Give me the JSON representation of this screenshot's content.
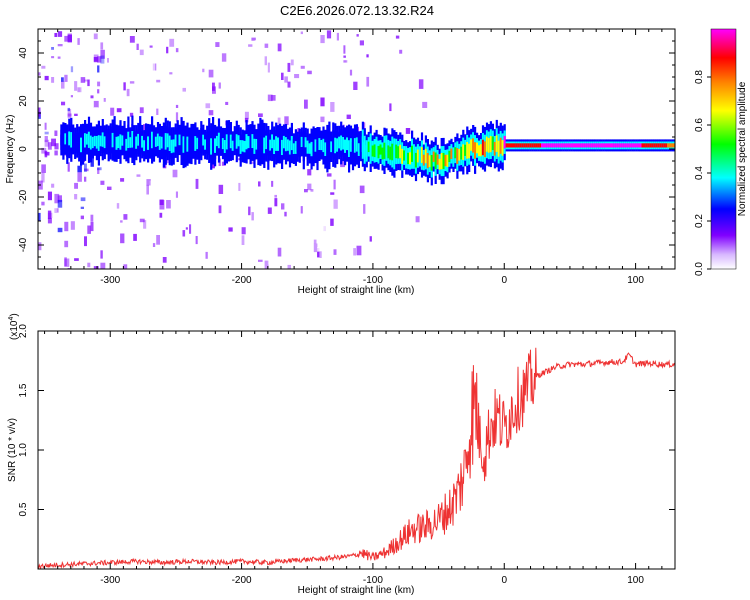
{
  "figure_title": "C2E6.2026.072.13.32.R24",
  "chart_data": [
    {
      "type": "heatmap",
      "xlabel": "Height of straight line (km)",
      "ylabel": "Frequency (Hz)",
      "xlim": [
        -355,
        130
      ],
      "ylim": [
        -50,
        50
      ],
      "xticks": [
        -300,
        -200,
        -100,
        0,
        100
      ],
      "xtick_labels": [
        "-300",
        "-200",
        "-100",
        "0",
        "100"
      ],
      "yticks": [
        -40,
        -20,
        0,
        20,
        40
      ],
      "ytick_labels": [
        "-40",
        "-20",
        "0",
        "20",
        "40"
      ],
      "colorbar": {
        "label": "Normalized spectral amplitude",
        "range": [
          0,
          1
        ],
        "ticks": [
          0.0,
          0.2,
          0.4,
          0.6,
          0.8
        ],
        "tick_labels": [
          "0.0",
          "0.2",
          "0.4",
          "0.6",
          "0.8"
        ],
        "colormap": [
          "#ffffff",
          "#8000ff",
          "#0000ff",
          "#00ffff",
          "#00ff00",
          "#ffff00",
          "#ff8000",
          "#ff0000",
          "#ff00ff"
        ]
      },
      "ridge": {
        "description_points_x": [
          -335,
          -250,
          -150,
          -110,
          -90,
          -75,
          -60,
          -50,
          -40,
          -30,
          0,
          50,
          100,
          130
        ],
        "frequency_hz": [
          3,
          2.5,
          1.5,
          1,
          -1,
          -3,
          -4,
          -5,
          -3,
          0,
          1.5,
          1.5,
          1.5,
          1.5
        ],
        "peak_amplitude": [
          0.3,
          0.3,
          0.3,
          0.35,
          0.45,
          0.5,
          0.6,
          0.7,
          0.6,
          0.6,
          0.8,
          0.95,
          0.9,
          0.75
        ]
      },
      "grid": false
    },
    {
      "type": "line",
      "xlabel": "Height of straight line (km)",
      "ylabel": "SNR (10 * v/v)",
      "yscale_label": "(x10",
      "yscale_exp": "4",
      "yscale_close": ")",
      "xlim": [
        -355,
        130
      ],
      "ylim": [
        0,
        2.0
      ],
      "xticks": [
        -300,
        -200,
        -100,
        0,
        100
      ],
      "xtick_labels": [
        "-300",
        "-200",
        "-100",
        "0",
        "100"
      ],
      "yticks": [
        0.5,
        1.0,
        1.5,
        2.0
      ],
      "ytick_labels": [
        "0.5",
        "1.0",
        "1.5",
        "2.0"
      ],
      "series": [
        {
          "color": "#ee3333",
          "x": [
            -355,
            -340,
            -320,
            -300,
            -280,
            -260,
            -240,
            -220,
            -200,
            -180,
            -160,
            -140,
            -120,
            -110,
            -100,
            -90,
            -80,
            -70,
            -60,
            -50,
            -45,
            -40,
            -35,
            -30,
            -25,
            -20,
            -15,
            -10,
            -5,
            0,
            5,
            10,
            15,
            20,
            30,
            40,
            50,
            60,
            70,
            80,
            90,
            95,
            100,
            110,
            120,
            130
          ],
          "y": [
            0.02,
            0.03,
            0.04,
            0.05,
            0.06,
            0.05,
            0.06,
            0.05,
            0.06,
            0.05,
            0.07,
            0.08,
            0.1,
            0.12,
            0.08,
            0.12,
            0.2,
            0.28,
            0.3,
            0.35,
            0.4,
            0.45,
            0.55,
            0.7,
            1.1,
            1.2,
            1.0,
            1.25,
            1.3,
            1.2,
            1.35,
            1.45,
            1.5,
            1.6,
            1.65,
            1.7,
            1.72,
            1.72,
            1.73,
            1.74,
            1.74,
            1.8,
            1.72,
            1.73,
            1.72,
            1.72
          ]
        }
      ],
      "grid": false
    }
  ]
}
